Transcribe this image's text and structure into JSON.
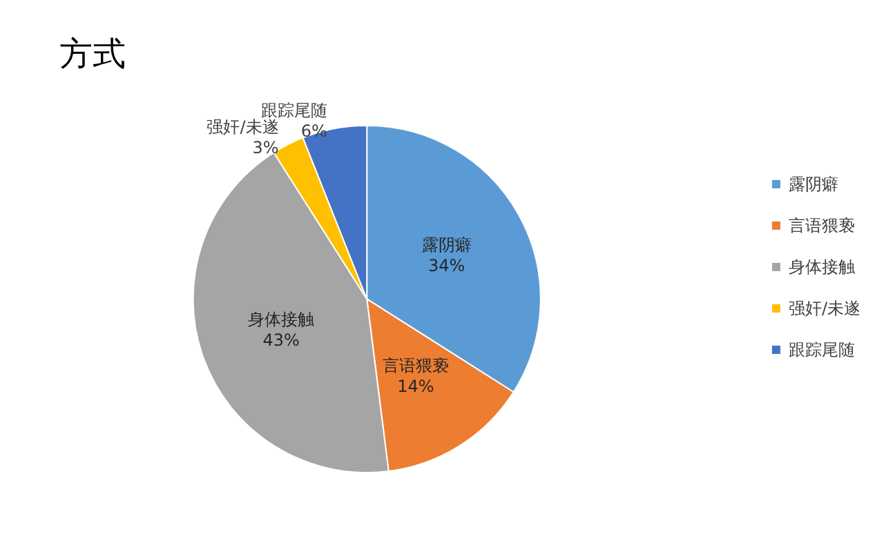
{
  "chart_data": {
    "type": "pie",
    "title": "方式",
    "categories": [
      "露阴癖",
      "言语猥亵",
      "身体接触",
      "强奸/未遂",
      "跟踪尾随"
    ],
    "values": [
      34,
      14,
      43,
      3,
      6
    ],
    "colors": [
      "#5b9bd5",
      "#ed7d31",
      "#a5a5a5",
      "#ffc000",
      "#4472c4"
    ],
    "value_labels": [
      "34%",
      "14%",
      "43%",
      "3%",
      "6%"
    ],
    "legend": "right"
  }
}
